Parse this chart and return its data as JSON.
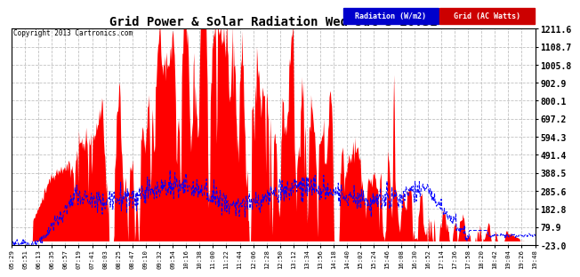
{
  "title": "Grid Power & Solar Radiation Wed Jul 3 20:31",
  "copyright": "Copyright 2013 Cartronics.com",
  "legend_labels": [
    "Radiation (W/m2)",
    "Grid (AC Watts)"
  ],
  "legend_colors_bg": [
    "#0000cc",
    "#cc0000"
  ],
  "legend_text_color": "#ffffff",
  "radiation_color": "#ff0000",
  "grid_line_color": "#0000ff",
  "background_color": "#ffffff",
  "plot_bg_color": "#ffffff",
  "y_min": -23.0,
  "y_max": 1211.6,
  "yticks": [
    -23.0,
    79.9,
    182.8,
    285.6,
    388.5,
    491.4,
    594.3,
    697.2,
    800.1,
    902.9,
    1005.8,
    1108.7,
    1211.6
  ],
  "x_labels": [
    "05:29",
    "05:51",
    "06:13",
    "06:35",
    "06:57",
    "07:19",
    "07:41",
    "08:03",
    "08:25",
    "08:47",
    "09:10",
    "09:32",
    "09:54",
    "10:16",
    "10:38",
    "11:00",
    "11:22",
    "11:44",
    "12:06",
    "12:28",
    "12:50",
    "13:12",
    "13:34",
    "13:56",
    "14:18",
    "14:40",
    "15:02",
    "15:24",
    "15:46",
    "16:08",
    "16:30",
    "16:52",
    "17:14",
    "17:36",
    "17:58",
    "18:20",
    "18:42",
    "19:04",
    "19:26",
    "19:48"
  ],
  "grid_dash_color": "#bbbbbb"
}
